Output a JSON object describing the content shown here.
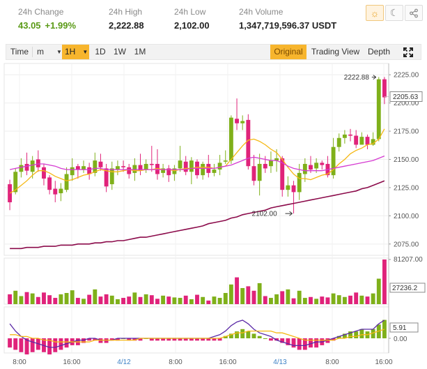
{
  "stats": {
    "change": {
      "label": "24h Change",
      "value": "43.05",
      "percent": "+1.99%"
    },
    "high": {
      "label": "24h High",
      "value": "2,222.88"
    },
    "low": {
      "label": "24h Low",
      "value": "2,102.00"
    },
    "volume": {
      "label": "24h Volume",
      "value": "1,347,719,596.37 USDT"
    }
  },
  "header_buttons": [
    {
      "name": "sun-icon",
      "glyph": "☼",
      "active": true
    },
    {
      "name": "moon-icon",
      "glyph": "☾",
      "active": false
    },
    {
      "name": "share-icon",
      "glyph": "⋖",
      "active": false
    }
  ],
  "toolbar": {
    "time_label": "Time",
    "minute_label": "m",
    "interval_label": "1H",
    "day_label": "1D",
    "week_label": "1W",
    "month_label": "1M",
    "original_label": "Original",
    "tradingview_label": "Trading View",
    "depth_label": "Depth",
    "fullscreen_icon": "fullscreen-icon"
  },
  "colors": {
    "up": "#7fb01a",
    "down": "#e0237a",
    "ma_short": "#f5b814",
    "ma_mid": "#d53ad1",
    "ma_long": "#8b0a4a",
    "macd_line": "#5b2aa6",
    "signal_line": "#f5b814"
  },
  "chart_data": {
    "type": "candlestick",
    "price_ylim": [
      2065,
      2235
    ],
    "price_ticks": [
      "2225.00",
      "2200.00",
      "2175.00",
      "2150.00",
      "2125.00",
      "2100.00",
      "2075.00"
    ],
    "current_price_label": "2205.63",
    "high_marker": "2222.88",
    "low_marker": "2102.00",
    "volume_labels": {
      "max": "81207.00",
      "current": "27236.2"
    },
    "macd_labels": {
      "current": "5.91",
      "zero": "0.00"
    },
    "x_labels": [
      {
        "text": "8:00",
        "day": false
      },
      {
        "text": "16:00",
        "day": false
      },
      {
        "text": "4/12",
        "day": true
      },
      {
        "text": "8:00",
        "day": false
      },
      {
        "text": "16:00",
        "day": false
      },
      {
        "text": "4/13",
        "day": true
      },
      {
        "text": "8:00",
        "day": false
      },
      {
        "text": "16:00",
        "day": false
      }
    ],
    "candles": [
      [
        2128,
        2112,
        2132,
        2105
      ],
      [
        2121,
        2139,
        2142,
        2119
      ],
      [
        2139,
        2145,
        2151,
        2134
      ],
      [
        2146,
        2140,
        2156,
        2136
      ],
      [
        2139,
        2149,
        2153,
        2133
      ],
      [
        2150,
        2143,
        2158,
        2139
      ],
      [
        2143,
        2133,
        2146,
        2127
      ],
      [
        2134,
        2123,
        2136,
        2119
      ],
      [
        2124,
        2119,
        2131,
        2112
      ],
      [
        2120,
        2124,
        2129,
        2113
      ],
      [
        2123,
        2137,
        2143,
        2121
      ],
      [
        2136,
        2143,
        2151,
        2131
      ],
      [
        2144,
        2141,
        2146,
        2133
      ],
      [
        2141,
        2144,
        2149,
        2138
      ],
      [
        2143,
        2137,
        2147,
        2132
      ],
      [
        2138,
        2149,
        2156,
        2135
      ],
      [
        2148,
        2143,
        2155,
        2140
      ],
      [
        2142,
        2126,
        2146,
        2121
      ],
      [
        2128,
        2142,
        2148,
        2123
      ],
      [
        2141,
        2144,
        2149,
        2136
      ],
      [
        2144,
        2143,
        2149,
        2139
      ],
      [
        2143,
        2137,
        2146,
        2133
      ],
      [
        2138,
        2145,
        2151,
        2131
      ],
      [
        2145,
        2140,
        2155,
        2136
      ],
      [
        2141,
        2146,
        2150,
        2138
      ],
      [
        2146,
        2145,
        2162,
        2139
      ],
      [
        2146,
        2137,
        2159,
        2132
      ],
      [
        2138,
        2142,
        2146,
        2134
      ],
      [
        2142,
        2136,
        2145,
        2130
      ],
      [
        2137,
        2142,
        2145,
        2131
      ],
      [
        2142,
        2149,
        2162,
        2139
      ],
      [
        2148,
        2139,
        2153,
        2136
      ],
      [
        2139,
        2149,
        2152,
        2128
      ],
      [
        2148,
        2136,
        2150,
        2133
      ],
      [
        2136,
        2146,
        2148,
        2132
      ],
      [
        2146,
        2138,
        2154,
        2134
      ],
      [
        2138,
        2141,
        2146,
        2135
      ],
      [
        2141,
        2147,
        2154,
        2136
      ],
      [
        2148,
        2149,
        2158,
        2146
      ],
      [
        2149,
        2187,
        2189,
        2146
      ],
      [
        2186,
        2182,
        2204,
        2176
      ],
      [
        2182,
        2184,
        2189,
        2176
      ],
      [
        2185,
        2144,
        2190,
        2141
      ],
      [
        2144,
        2131,
        2154,
        2127
      ],
      [
        2131,
        2146,
        2155,
        2118
      ],
      [
        2146,
        2142,
        2153,
        2138
      ],
      [
        2144,
        2149,
        2157,
        2138
      ],
      [
        2149,
        2151,
        2159,
        2139
      ],
      [
        2151,
        2123,
        2153,
        2117
      ],
      [
        2123,
        2127,
        2135,
        2117
      ],
      [
        2127,
        2121,
        2131,
        2102
      ],
      [
        2121,
        2138,
        2146,
        2114
      ],
      [
        2137,
        2146,
        2151,
        2130
      ],
      [
        2145,
        2141,
        2153,
        2138
      ],
      [
        2142,
        2147,
        2151,
        2138
      ],
      [
        2147,
        2145,
        2149,
        2141
      ],
      [
        2146,
        2136,
        2153,
        2134
      ],
      [
        2136,
        2161,
        2169,
        2133
      ],
      [
        2161,
        2169,
        2173,
        2157
      ],
      [
        2169,
        2172,
        2176,
        2164
      ],
      [
        2172,
        2171,
        2177,
        2166
      ],
      [
        2171,
        2163,
        2176,
        2160
      ],
      [
        2163,
        2170,
        2174,
        2165
      ],
      [
        2170,
        2163,
        2172,
        2159
      ],
      [
        2163,
        2168,
        2174,
        2162
      ],
      [
        2168,
        2221,
        2223,
        2166
      ],
      [
        2221,
        2205,
        2223,
        2199
      ]
    ],
    "ma_short": [
      2120,
      2123,
      2127,
      2131,
      2136,
      2140,
      2140,
      2138,
      2135,
      2133,
      2131,
      2132,
      2134,
      2136,
      2137,
      2139,
      2141,
      2140,
      2139,
      2139,
      2140,
      2141,
      2140,
      2140,
      2141,
      2141,
      2142,
      2141,
      2141,
      2140,
      2141,
      2142,
      2142,
      2143,
      2143,
      2143,
      2142,
      2143,
      2144,
      2150,
      2156,
      2162,
      2167,
      2168,
      2166,
      2163,
      2159,
      2156,
      2150,
      2143,
      2137,
      2133,
      2133,
      2132,
      2134,
      2136,
      2137,
      2141,
      2146,
      2150,
      2155,
      2158,
      2160,
      2163,
      2164,
      2168,
      2177
    ],
    "ma_mid": [
      2141,
      2142,
      2143,
      2144,
      2145,
      2146,
      2146,
      2145,
      2144,
      2142,
      2141,
      2141,
      2141,
      2141,
      2141,
      2142,
      2142,
      2141,
      2141,
      2141,
      2141,
      2141,
      2141,
      2141,
      2141,
      2141,
      2141,
      2141,
      2141,
      2141,
      2141,
      2141,
      2142,
      2142,
      2142,
      2142,
      2142,
      2143,
      2144,
      2145,
      2147,
      2149,
      2151,
      2152,
      2151,
      2150,
      2149,
      2149,
      2147,
      2144,
      2142,
      2141,
      2140,
      2140,
      2140,
      2140,
      2141,
      2142,
      2143,
      2144,
      2145,
      2146,
      2147,
      2148,
      2149,
      2151,
      2153
    ],
    "ma_long": [
      2071,
      2071,
      2071,
      2072,
      2072,
      2072,
      2073,
      2073,
      2073,
      2074,
      2074,
      2074,
      2075,
      2075,
      2075,
      2076,
      2076,
      2077,
      2077,
      2078,
      2078,
      2079,
      2080,
      2081,
      2081,
      2082,
      2083,
      2084,
      2085,
      2086,
      2087,
      2088,
      2089,
      2090,
      2091,
      2093,
      2094,
      2095,
      2096,
      2098,
      2099,
      2101,
      2102,
      2103,
      2104,
      2105,
      2107,
      2108,
      2109,
      2110,
      2111,
      2112,
      2113,
      2114,
      2115,
      2116,
      2117,
      2118,
      2119,
      2120,
      2121,
      2122,
      2124,
      2125,
      2127,
      2129,
      2131
    ],
    "volumes": [
      22,
      30,
      18,
      27,
      24,
      16,
      26,
      20,
      14,
      22,
      25,
      31,
      14,
      12,
      21,
      33,
      17,
      22,
      19,
      11,
      14,
      17,
      26,
      16,
      22,
      20,
      12,
      19,
      17,
      15,
      14,
      19,
      11,
      21,
      16,
      8,
      17,
      14,
      25,
      44,
      60,
      36,
      40,
      30,
      47,
      18,
      14,
      22,
      29,
      33,
      13,
      30,
      14,
      16,
      12,
      17,
      15,
      24,
      20,
      16,
      19,
      26,
      19,
      17,
      24,
      57,
      100
    ],
    "macd_hist": [
      -4,
      -5,
      -6,
      -7,
      -6,
      -5,
      -6,
      -7,
      -6,
      -5,
      -4,
      -3,
      -3,
      -2,
      -1,
      -1,
      -2,
      -2,
      -1,
      -1,
      0,
      -1,
      -1,
      -1,
      0,
      -1,
      -1,
      -1,
      -1,
      -1,
      -1,
      -1,
      -1,
      -1,
      -1,
      -1,
      -1,
      -1,
      1,
      2,
      3,
      4,
      3,
      2,
      1,
      0,
      -1,
      -1,
      -2,
      -3,
      -4,
      -5,
      -5,
      -4,
      -4,
      -3,
      -2,
      -1,
      1,
      2,
      3,
      3,
      4,
      3,
      4,
      6,
      8
    ],
    "macd_line": [
      8,
      4,
      1,
      -1,
      -2,
      -3,
      -4,
      -5,
      -5,
      -4,
      -3,
      -2,
      -1,
      -1,
      0,
      0,
      -1,
      -1,
      -1,
      0,
      0,
      0,
      0,
      0,
      0,
      0,
      0,
      0,
      0,
      0,
      0,
      0,
      0,
      0,
      0,
      0,
      1,
      2,
      4,
      7,
      9,
      10,
      8,
      5,
      3,
      2,
      1,
      -1,
      -2,
      -3,
      -4,
      -4,
      -4,
      -3,
      -2,
      -2,
      -1,
      0,
      1,
      2,
      3,
      4,
      5,
      5,
      5,
      8,
      10
    ],
    "signal_line": [
      2,
      2,
      1,
      1,
      0,
      0,
      -1,
      -1,
      -2,
      -2,
      -2,
      -2,
      -2,
      -2,
      -2,
      -1,
      -1,
      -1,
      -1,
      -1,
      -1,
      -1,
      -1,
      0,
      0,
      0,
      0,
      0,
      0,
      0,
      0,
      0,
      0,
      0,
      0,
      0,
      0,
      0,
      1,
      2,
      3,
      3,
      4,
      4,
      4,
      4,
      4,
      3,
      3,
      2,
      1,
      0,
      -1,
      -1,
      -1,
      -1,
      -1,
      -1,
      0,
      0,
      1,
      1,
      2,
      2,
      3,
      4,
      5
    ]
  }
}
